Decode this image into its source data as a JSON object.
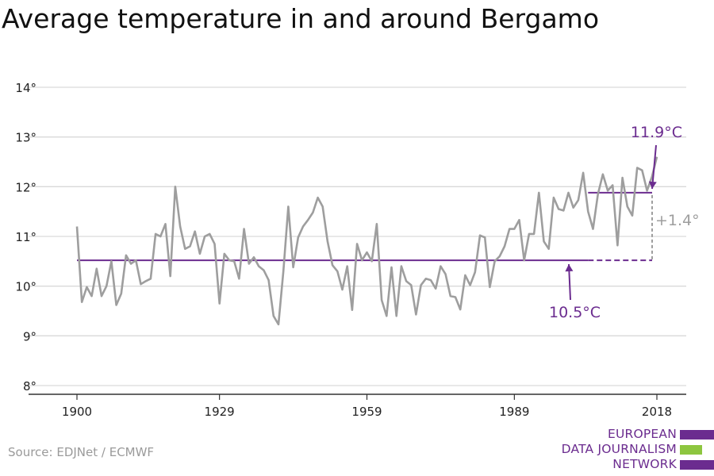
{
  "title": "Average temperature in and around Bergamo",
  "source": "Source: EDJNet / ECMWF",
  "logo": {
    "lines": [
      "EUROPEAN",
      "DATA JOURNALISM",
      "NETWORK"
    ],
    "bar_colors": [
      "#6b2c8f",
      "#8dc63f",
      "#6b2c8f"
    ]
  },
  "colors": {
    "series": "#9e9e9e",
    "accent": "#6b2c8f",
    "grid": "#d9d9d9",
    "axis": "#333333"
  },
  "chart_data": {
    "type": "line",
    "title": "Average temperature in and around Bergamo",
    "xlabel": "",
    "ylabel": "",
    "xlim": [
      1900,
      2018
    ],
    "ylim": [
      8,
      14
    ],
    "y_ticks": [
      8,
      9,
      10,
      11,
      12,
      13,
      14
    ],
    "y_tick_labels": [
      "8°",
      "9°",
      "10°",
      "11°",
      "12°",
      "13°",
      "14°"
    ],
    "x_ticks": [
      1900,
      1929,
      1959,
      1989,
      2018
    ],
    "x_tick_labels": [
      "1900",
      "1929",
      "1959",
      "1989",
      "2018"
    ],
    "grid": true,
    "series": [
      {
        "x": [
          1900,
          1901,
          1902,
          1903,
          1904,
          1905,
          1906,
          1907,
          1908,
          1909,
          1910,
          1911,
          1912,
          1913,
          1914,
          1915,
          1916,
          1917,
          1918,
          1919,
          1920,
          1921,
          1922,
          1923,
          1924,
          1925,
          1926,
          1927,
          1928,
          1929,
          1930,
          1931,
          1932,
          1933,
          1934,
          1935,
          1936,
          1937,
          1938,
          1939,
          1940,
          1941,
          1942,
          1943,
          1944,
          1945,
          1946,
          1947,
          1948,
          1949,
          1950,
          1951,
          1952,
          1953,
          1954,
          1955,
          1956,
          1957,
          1958,
          1959,
          1960,
          1961,
          1962,
          1963,
          1964,
          1965,
          1966,
          1967,
          1968,
          1969,
          1970,
          1971,
          1972,
          1973,
          1974,
          1975,
          1976,
          1977,
          1978,
          1979,
          1980,
          1981,
          1982,
          1983,
          1984,
          1985,
          1986,
          1987,
          1988,
          1989,
          1990,
          1991,
          1992,
          1993,
          1994,
          1995,
          1996,
          1997,
          1998,
          1999,
          2000,
          2001,
          2002,
          2003,
          2004,
          2005,
          2006,
          2007,
          2008,
          2009,
          2010,
          2011,
          2012,
          2013,
          2014,
          2015,
          2016,
          2017,
          2018
        ],
        "y": [
          11.2,
          9.68,
          9.98,
          9.8,
          10.35,
          9.8,
          10.0,
          10.5,
          9.62,
          9.85,
          10.62,
          10.45,
          10.52,
          10.04,
          10.1,
          10.15,
          11.05,
          11.0,
          11.25,
          10.2,
          12.0,
          11.2,
          10.75,
          10.8,
          11.1,
          10.65,
          11.0,
          11.05,
          10.85,
          9.65,
          10.65,
          10.52,
          10.5,
          10.15,
          11.15,
          10.45,
          10.58,
          10.4,
          10.32,
          10.12,
          9.4,
          9.23,
          10.3,
          11.6,
          10.38,
          10.98,
          11.2,
          11.33,
          11.48,
          11.78,
          11.6,
          10.9,
          10.42,
          10.3,
          9.93,
          10.4,
          9.52,
          10.85,
          10.52,
          10.68,
          10.5,
          11.25,
          9.72,
          9.4,
          10.38,
          9.4,
          10.4,
          10.1,
          10.02,
          9.43,
          10.02,
          10.15,
          10.12,
          9.95,
          10.4,
          10.24,
          9.8,
          9.78,
          9.53,
          10.22,
          10.02,
          10.28,
          11.02,
          10.98,
          9.98,
          10.5,
          10.6,
          10.8,
          11.15,
          11.15,
          11.33,
          10.52,
          11.05,
          11.05,
          11.88,
          10.9,
          10.75,
          11.78,
          11.55,
          11.52,
          11.88,
          11.58,
          11.73,
          12.28,
          11.5,
          11.15,
          11.85,
          12.25,
          11.92,
          12.03,
          10.82,
          12.18,
          11.6,
          11.42,
          12.38,
          12.33,
          11.92,
          12.2,
          12.6
        ]
      }
    ],
    "annotations": [
      {
        "text": "11.9°C",
        "value": 11.88,
        "from_year": 2004,
        "to_year": 2018
      },
      {
        "text": "10.5°C",
        "value": 10.52,
        "from_year": 1900,
        "to_year": 2018
      },
      {
        "text": "+1.4°"
      }
    ]
  }
}
